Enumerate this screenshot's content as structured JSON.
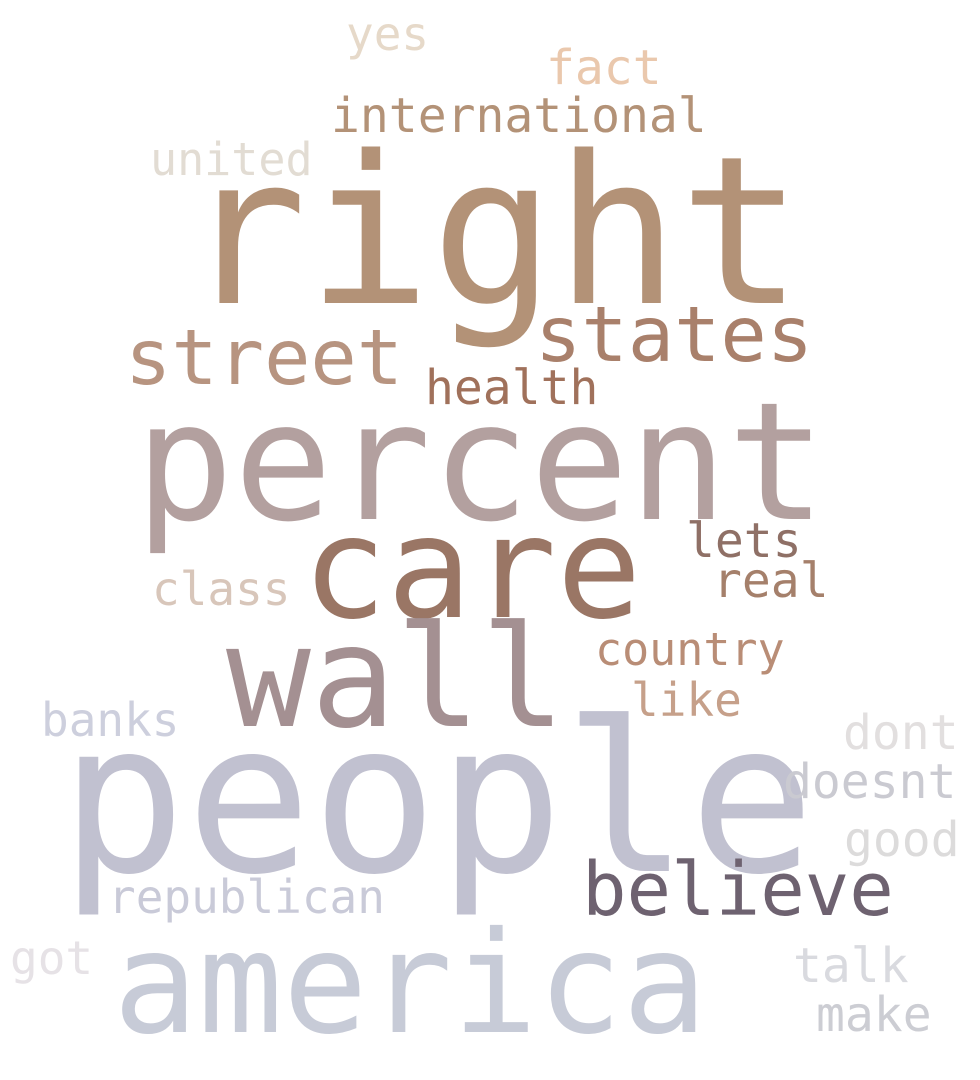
{
  "words": [
    {
      "text": "right",
      "color": "#b39277"
    },
    {
      "text": "people",
      "color": "#c1c1d0"
    },
    {
      "text": "percent",
      "color": "#b3a09f"
    },
    {
      "text": "care",
      "color": "#9a7665"
    },
    {
      "text": "wall",
      "color": "#a49092"
    },
    {
      "text": "america",
      "color": "#c7cbd7"
    },
    {
      "text": "believe",
      "color": "#6e6270"
    },
    {
      "text": "states",
      "color": "#a9806b"
    },
    {
      "text": "street",
      "color": "#b79480"
    },
    {
      "text": "international",
      "color": "#b39277"
    },
    {
      "text": "health",
      "color": "#a0715b"
    },
    {
      "text": "united",
      "color": "#e2dcd3"
    },
    {
      "text": "yes",
      "color": "#e6d9c9"
    },
    {
      "text": "fact",
      "color": "#eac8ad"
    },
    {
      "text": "lets",
      "color": "#8f7066"
    },
    {
      "text": "real",
      "color": "#a5806b"
    },
    {
      "text": "class",
      "color": "#d8c6ba"
    },
    {
      "text": "country",
      "color": "#b98d76"
    },
    {
      "text": "like",
      "color": "#c6a08a"
    },
    {
      "text": "banks",
      "color": "#cdcfdd"
    },
    {
      "text": "republican",
      "color": "#c9cad8"
    },
    {
      "text": "dont",
      "color": "#e2dfdf"
    },
    {
      "text": "doesnt",
      "color": "#cacad1"
    },
    {
      "text": "good",
      "color": "#dcdbdb"
    },
    {
      "text": "got",
      "color": "#e6e2e6"
    },
    {
      "text": "talk",
      "color": "#d9dadf"
    },
    {
      "text": "make",
      "color": "#cccdd3"
    }
  ]
}
